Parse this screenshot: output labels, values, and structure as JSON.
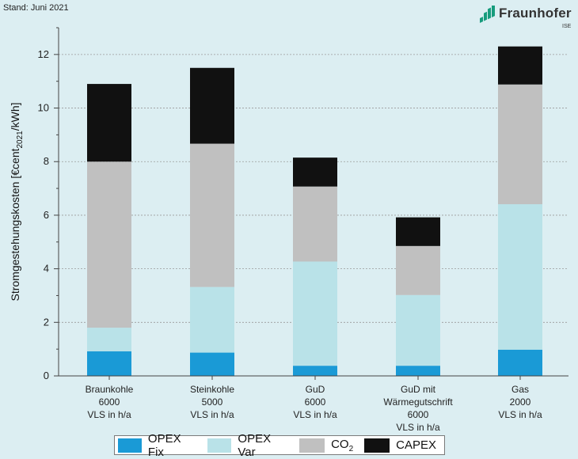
{
  "header": {
    "stand": "Stand: Juni 2021",
    "logo_name": "Fraunhofer",
    "logo_sub": "ISE"
  },
  "chart_data": {
    "type": "bar",
    "stacked": true,
    "title": "",
    "xlabel": "",
    "ylabel": "Stromgestehungskosten [€cent2021/kWh]",
    "ylabel_parts": {
      "main": "Stromgestehungskosten [€cent",
      "sub": "2021",
      "tail": "/kWh]"
    },
    "ylim": [
      0,
      13
    ],
    "yticks": [
      0,
      2,
      4,
      6,
      8,
      10,
      12
    ],
    "grid": true,
    "categories": [
      [
        "Braunkohle",
        "6000",
        "VLS in h/a"
      ],
      [
        "Steinkohle",
        "5000",
        "VLS in h/a"
      ],
      [
        "GuD",
        "6000",
        "VLS in h/a"
      ],
      [
        "GuD mit",
        "Wärmegutschrift",
        "6000",
        "VLS in h/a"
      ],
      [
        "Gas",
        "2000",
        "VLS in h/a"
      ]
    ],
    "series": [
      {
        "name": "OPEX Fix",
        "color": "#1a9ad6",
        "values": [
          0.92,
          0.87,
          0.38,
          0.38,
          0.98
        ]
      },
      {
        "name": "OPEX Var",
        "color": "#b9e2e8",
        "values": [
          0.88,
          2.45,
          3.89,
          2.64,
          5.43
        ]
      },
      {
        "name": "CO2",
        "color": "#c0c0c0",
        "values": [
          6.2,
          5.35,
          2.8,
          1.83,
          4.47
        ]
      },
      {
        "name": "CAPEX",
        "color": "#111111",
        "values": [
          2.9,
          2.83,
          1.08,
          1.07,
          1.42
        ]
      }
    ],
    "legend_position": "bottom",
    "legend": [
      {
        "label": "OPEX Fix",
        "color": "#1a9ad6"
      },
      {
        "label": "OPEX Var",
        "color": "#b9e2e8"
      },
      {
        "label": "CO",
        "sub": "2",
        "color": "#c0c0c0"
      },
      {
        "label": "CAPEX",
        "color": "#111111"
      }
    ]
  }
}
